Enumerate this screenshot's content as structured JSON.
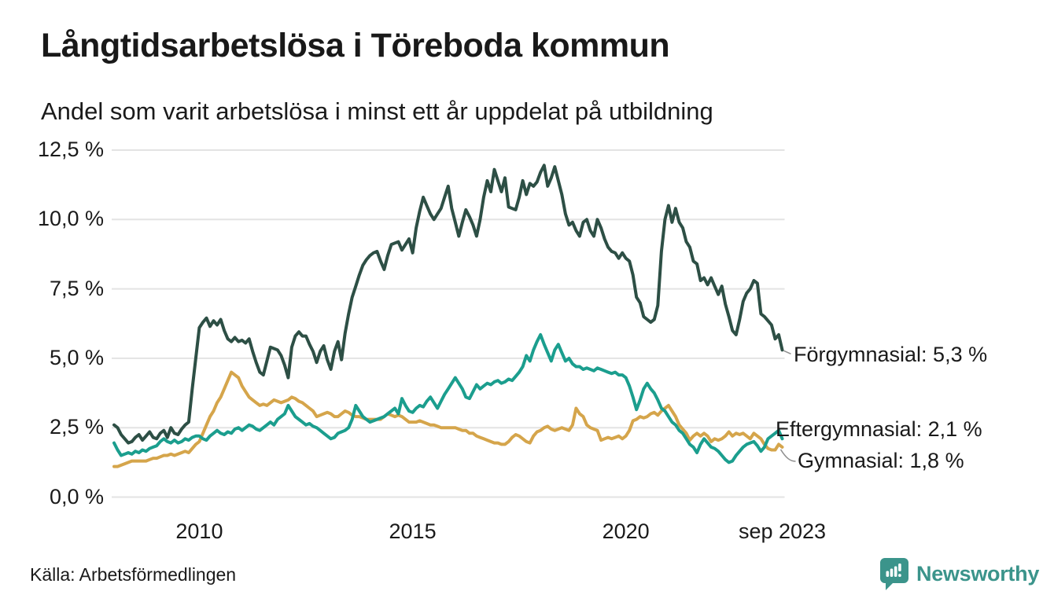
{
  "header": {
    "title": "Långtidsarbetslösa i Töreboda kommun",
    "subtitle": "Andel som varit arbetslösa i minst ett år uppdelat på utbildning"
  },
  "footer": {
    "source": "Källa: Arbetsförmedlingen",
    "logo_text": "Newsworthy",
    "logo_icon": "newsworthy-speech-bubble-barchart-icon"
  },
  "colors": {
    "forgymnasial": "#2d4f45",
    "eftergymnasial": "#1b9e8e",
    "gymnasial": "#d5a54b",
    "grid": "#e3e3e3",
    "connector": "#8f8f8f",
    "text": "#1a1a1a",
    "logo": "#3b948b"
  },
  "chart_data": {
    "type": "line",
    "title": "Långtidsarbetslösa i Töreboda kommun",
    "subtitle": "Andel som varit arbetslösa i minst ett år uppdelat på utbildning",
    "x_unit": "month",
    "x_range_start": "jan 2008",
    "x_range_end": "sep 2023",
    "ylim": [
      0,
      12.5
    ],
    "grid": true,
    "legend_position": "right-end-labels",
    "y_ticks": [
      {
        "value": 0,
        "label": "0,0 %"
      },
      {
        "value": 2.5,
        "label": "2,5 %"
      },
      {
        "value": 5,
        "label": "5,0 %"
      },
      {
        "value": 7.5,
        "label": "7,5 %"
      },
      {
        "value": 10,
        "label": "10,0 %"
      },
      {
        "value": 12.5,
        "label": "12,5 %"
      }
    ],
    "x_ticks": [
      {
        "month_index": 24,
        "label": "2010"
      },
      {
        "month_index": 84,
        "label": "2015"
      },
      {
        "month_index": 144,
        "label": "2020"
      },
      {
        "month_index": 188,
        "label": "sep 2023"
      }
    ],
    "series": [
      {
        "name": "Förgymnasial",
        "end_label": "Förgymnasial: 5,3 %",
        "end_value": 5.3,
        "color": "#2d4f45",
        "values": [
          2.6,
          2.5,
          2.25,
          2.1,
          1.95,
          2.0,
          2.15,
          2.25,
          2.05,
          2.2,
          2.35,
          2.15,
          2.1,
          2.3,
          2.4,
          2.15,
          2.5,
          2.3,
          2.25,
          2.45,
          2.6,
          2.7,
          3.9,
          5.0,
          6.1,
          6.3,
          6.45,
          6.15,
          6.35,
          6.2,
          6.4,
          6.0,
          5.7,
          5.6,
          5.75,
          5.6,
          5.65,
          5.55,
          5.7,
          5.25,
          4.85,
          4.5,
          4.4,
          4.9,
          5.4,
          5.35,
          5.3,
          5.1,
          4.75,
          4.3,
          5.4,
          5.8,
          5.95,
          5.8,
          5.8,
          5.5,
          5.25,
          4.85,
          5.25,
          5.45,
          4.95,
          4.6,
          5.25,
          5.6,
          4.95,
          5.9,
          6.6,
          7.2,
          7.6,
          8.0,
          8.35,
          8.55,
          8.7,
          8.8,
          8.85,
          8.5,
          8.2,
          8.7,
          9.1,
          9.15,
          9.2,
          8.9,
          9.1,
          9.3,
          8.8,
          9.7,
          10.3,
          10.8,
          10.5,
          10.2,
          10.0,
          10.2,
          10.4,
          10.8,
          11.2,
          10.4,
          9.9,
          9.4,
          9.9,
          10.35,
          10.1,
          9.8,
          9.4,
          10.0,
          10.8,
          11.4,
          11.0,
          11.8,
          11.4,
          11.0,
          11.5,
          10.45,
          10.4,
          10.35,
          10.8,
          11.4,
          10.9,
          11.3,
          11.2,
          11.35,
          11.7,
          11.95,
          11.2,
          11.5,
          11.9,
          11.4,
          10.9,
          10.2,
          9.8,
          9.9,
          9.6,
          9.4,
          9.9,
          10.0,
          9.6,
          9.4,
          10.0,
          9.7,
          9.3,
          9.0,
          8.85,
          8.8,
          8.6,
          8.8,
          8.6,
          8.5,
          8.0,
          7.2,
          7.0,
          6.5,
          6.4,
          6.3,
          6.4,
          6.9,
          8.85,
          10.0,
          10.5,
          9.9,
          10.4,
          9.9,
          9.7,
          9.2,
          9.0,
          8.5,
          8.4,
          7.8,
          7.9,
          7.65,
          7.9,
          7.6,
          7.3,
          7.6,
          6.95,
          6.5,
          6.0,
          5.85,
          6.4,
          7.05,
          7.35,
          7.5,
          7.8,
          7.7,
          6.6,
          6.5,
          6.35,
          6.2,
          5.7,
          5.85,
          5.3
        ]
      },
      {
        "name": "Eftergymnasial",
        "end_label": "Eftergymnasial: 2,1 %",
        "end_value": 2.1,
        "color": "#1b9e8e",
        "values": [
          1.95,
          1.7,
          1.5,
          1.55,
          1.6,
          1.55,
          1.65,
          1.6,
          1.7,
          1.65,
          1.75,
          1.8,
          1.85,
          2.0,
          2.1,
          2.0,
          1.95,
          2.05,
          1.95,
          2.0,
          2.1,
          2.05,
          2.15,
          2.2,
          2.2,
          2.1,
          2.05,
          2.2,
          2.3,
          2.4,
          2.3,
          2.25,
          2.35,
          2.3,
          2.45,
          2.5,
          2.4,
          2.5,
          2.6,
          2.55,
          2.45,
          2.4,
          2.5,
          2.6,
          2.7,
          2.6,
          2.8,
          2.9,
          3.0,
          3.3,
          3.1,
          2.9,
          2.8,
          2.7,
          2.6,
          2.65,
          2.55,
          2.5,
          2.4,
          2.3,
          2.2,
          2.1,
          2.15,
          2.3,
          2.35,
          2.4,
          2.5,
          2.8,
          3.3,
          3.1,
          2.9,
          2.8,
          2.7,
          2.75,
          2.8,
          2.85,
          2.9,
          3.0,
          3.1,
          3.2,
          3.0,
          3.55,
          3.3,
          3.1,
          3.05,
          3.2,
          3.3,
          3.25,
          3.45,
          3.6,
          3.4,
          3.2,
          3.45,
          3.7,
          3.9,
          4.1,
          4.3,
          4.1,
          3.9,
          3.6,
          3.55,
          3.8,
          4.05,
          3.9,
          4.0,
          4.1,
          4.05,
          4.15,
          4.2,
          4.1,
          4.15,
          4.25,
          4.2,
          4.35,
          4.5,
          4.7,
          5.1,
          4.9,
          5.3,
          5.6,
          5.85,
          5.5,
          5.2,
          4.9,
          5.3,
          5.5,
          5.2,
          4.9,
          5.0,
          4.8,
          4.7,
          4.7,
          4.6,
          4.65,
          4.6,
          4.55,
          4.65,
          4.6,
          4.55,
          4.5,
          4.45,
          4.5,
          4.4,
          4.4,
          4.3,
          4.0,
          3.6,
          3.15,
          3.5,
          3.9,
          4.1,
          3.9,
          3.75,
          3.5,
          3.2,
          3.1,
          2.9,
          2.7,
          2.6,
          2.4,
          2.3,
          2.1,
          1.9,
          1.8,
          1.6,
          1.9,
          2.1,
          1.95,
          1.8,
          1.75,
          1.65,
          1.5,
          1.35,
          1.25,
          1.3,
          1.5,
          1.65,
          1.8,
          1.9,
          1.95,
          2.0,
          1.85,
          1.65,
          1.8,
          2.1,
          2.2,
          2.3,
          2.4,
          2.1
        ]
      },
      {
        "name": "Gymnasial",
        "end_label": "Gymnasial: 1,8 %",
        "end_value": 1.8,
        "color": "#d5a54b",
        "values": [
          1.1,
          1.1,
          1.15,
          1.2,
          1.25,
          1.3,
          1.3,
          1.3,
          1.3,
          1.3,
          1.35,
          1.4,
          1.4,
          1.45,
          1.5,
          1.5,
          1.55,
          1.5,
          1.55,
          1.6,
          1.65,
          1.6,
          1.75,
          1.9,
          2.0,
          2.3,
          2.6,
          2.9,
          3.1,
          3.4,
          3.6,
          3.9,
          4.2,
          4.5,
          4.4,
          4.3,
          4.0,
          3.8,
          3.6,
          3.5,
          3.4,
          3.3,
          3.35,
          3.3,
          3.4,
          3.5,
          3.45,
          3.4,
          3.45,
          3.5,
          3.6,
          3.55,
          3.45,
          3.4,
          3.3,
          3.2,
          3.1,
          2.9,
          2.95,
          3.0,
          3.05,
          3.0,
          2.9,
          2.9,
          3.0,
          3.1,
          3.05,
          2.95,
          2.9,
          2.9,
          2.85,
          2.8,
          2.8,
          2.8,
          2.8,
          2.8,
          2.9,
          3.0,
          2.95,
          2.9,
          2.95,
          2.9,
          2.8,
          2.7,
          2.7,
          2.7,
          2.75,
          2.7,
          2.65,
          2.6,
          2.6,
          2.55,
          2.5,
          2.5,
          2.5,
          2.5,
          2.5,
          2.45,
          2.4,
          2.4,
          2.3,
          2.3,
          2.2,
          2.15,
          2.1,
          2.05,
          2.0,
          1.95,
          1.95,
          1.9,
          1.9,
          2.0,
          2.15,
          2.25,
          2.2,
          2.1,
          2.0,
          1.95,
          2.2,
          2.35,
          2.4,
          2.5,
          2.55,
          2.45,
          2.4,
          2.45,
          2.5,
          2.45,
          2.4,
          2.6,
          3.2,
          3.0,
          2.9,
          2.6,
          2.5,
          2.45,
          2.4,
          2.05,
          2.1,
          2.15,
          2.1,
          2.15,
          2.2,
          2.1,
          2.2,
          2.4,
          2.75,
          2.8,
          2.9,
          2.85,
          2.9,
          3.0,
          3.05,
          2.95,
          3.1,
          3.2,
          3.3,
          3.1,
          2.9,
          2.6,
          2.45,
          2.3,
          2.05,
          2.2,
          2.3,
          2.2,
          2.3,
          2.2,
          2.0,
          2.1,
          2.05,
          2.1,
          2.2,
          2.35,
          2.2,
          2.3,
          2.25,
          2.3,
          2.2,
          2.1,
          2.3,
          2.2,
          2.1,
          1.9,
          1.75,
          1.7,
          1.7,
          1.9,
          1.8
        ]
      }
    ]
  }
}
